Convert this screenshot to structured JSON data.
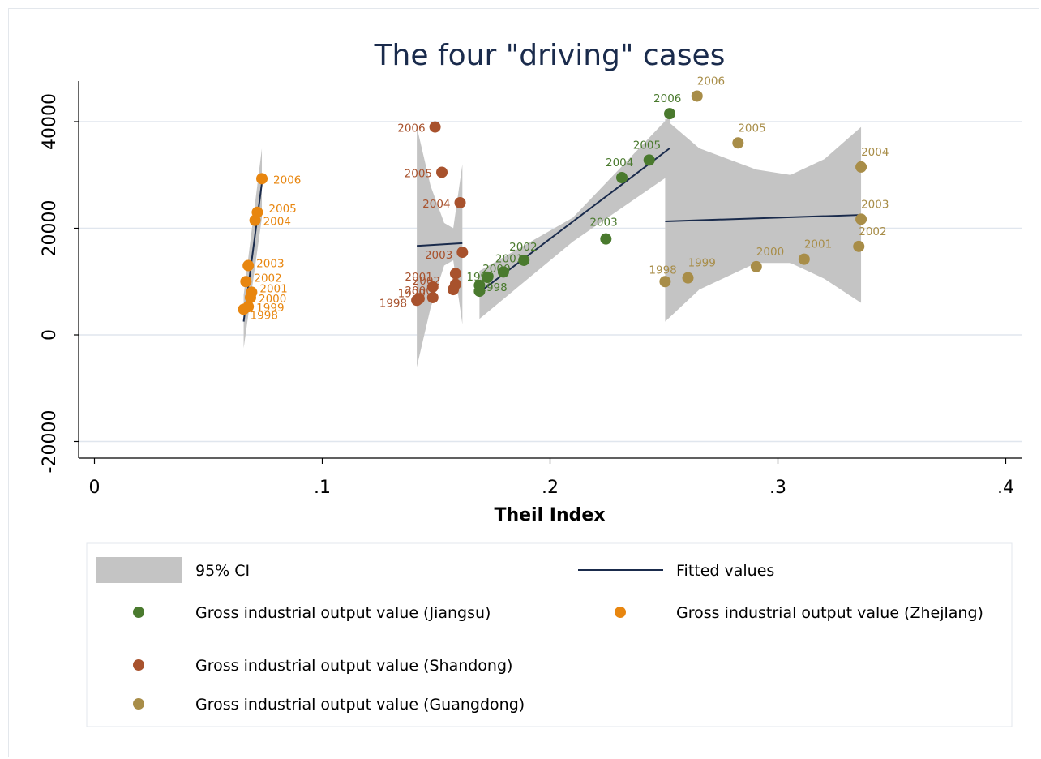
{
  "chart_data": {
    "type": "scatter",
    "title": "The four \"driving\" cases",
    "xlabel": "Theil Index",
    "ylabel": "",
    "xlim": [
      0,
      0.4
    ],
    "ylim": [
      -20000,
      45000
    ],
    "x_ticks": [
      0,
      0.1,
      0.2,
      0.3,
      0.4
    ],
    "x_tick_labels": [
      "0",
      ".1",
      ".2",
      ".3",
      ".4"
    ],
    "y_ticks": [
      -20000,
      0,
      20000,
      40000
    ],
    "y_tick_labels": [
      "-20000",
      "0",
      "20000",
      "40000"
    ],
    "grid": "horizontal",
    "legend": {
      "placement": "bottom",
      "entries": [
        {
          "key": "ci",
          "label": "95% CI",
          "color": "#c4c4c4"
        },
        {
          "key": "fit",
          "label": "Fitted values",
          "color": "#1a2b4c"
        },
        {
          "key": "jiangsu",
          "label": "Gross industrial output value (Jiangsu)",
          "color": "#4a7a2e"
        },
        {
          "key": "zhejiang",
          "label": "Gross industrial output value (Zhejlang)",
          "color": "#e8860f"
        },
        {
          "key": "shandong",
          "label": "Gross industrial output value (Shandong)",
          "color": "#a8522d"
        },
        {
          "key": "guangdong",
          "label": "Gross industrial output value (Guangdong)",
          "color": "#a88d48"
        }
      ]
    },
    "series": [
      {
        "key": "zhejiang",
        "color": "#e8860f",
        "points": [
          {
            "x": 0.0655,
            "y": 4800,
            "label": "1998",
            "dx": 8,
            "dy": 12
          },
          {
            "x": 0.0675,
            "y": 5300,
            "label": "1999",
            "dx": 10,
            "dy": 6
          },
          {
            "x": 0.0685,
            "y": 7000,
            "label": "2000",
            "dx": 10,
            "dy": 6
          },
          {
            "x": 0.069,
            "y": 8000,
            "label": "2001",
            "dx": 10,
            "dy": 0
          },
          {
            "x": 0.0665,
            "y": 10000,
            "label": "2002",
            "dx": 10,
            "dy": 0
          },
          {
            "x": 0.0675,
            "y": 13000,
            "label": "2003",
            "dx": 10,
            "dy": 2
          },
          {
            "x": 0.0705,
            "y": 21500,
            "label": "2004",
            "dx": 10,
            "dy": 6
          },
          {
            "x": 0.0715,
            "y": 23000,
            "label": "2005",
            "dx": 14,
            "dy": 0
          },
          {
            "x": 0.0735,
            "y": 29300,
            "label": "2006",
            "dx": 14,
            "dy": 6
          }
        ],
        "fit": {
          "x": [
            0.0655,
            0.0735
          ],
          "y": [
            2500,
            28500
          ]
        },
        "ci": {
          "x": [
            0.0655,
            0.0735
          ],
          "upper": [
            7500,
            35000
          ],
          "lower": [
            -2500,
            22000
          ]
        }
      },
      {
        "key": "shandong",
        "color": "#a8522d",
        "points": [
          {
            "x": 0.1415,
            "y": 6500,
            "label": "1998",
            "dx": -12,
            "dy": 8,
            "anchor": "end"
          },
          {
            "x": 0.1425,
            "y": 6800,
            "label": "1999",
            "dx": 8,
            "dy": -2,
            "anchor": "end"
          },
          {
            "x": 0.1485,
            "y": 7000,
            "label": "2000",
            "dx": 0,
            "dy": -4,
            "anchor": "end"
          },
          {
            "x": 0.1485,
            "y": 9000,
            "label": "2001",
            "dx": 0,
            "dy": -8,
            "anchor": "end"
          },
          {
            "x": 0.1575,
            "y": 8500,
            "label": "2002",
            "dx": -16,
            "dy": -6,
            "anchor": "end"
          },
          {
            "x": 0.1585,
            "y": 9500,
            "label": "",
            "dx": 0,
            "dy": 0
          },
          {
            "x": 0.1585,
            "y": 11500,
            "label": "",
            "dx": 0,
            "dy": 0
          },
          {
            "x": 0.1615,
            "y": 15500,
            "label": "2003",
            "dx": -12,
            "dy": 8,
            "anchor": "end"
          },
          {
            "x": 0.1605,
            "y": 24800,
            "label": "2004",
            "dx": -12,
            "dy": 6,
            "anchor": "end"
          },
          {
            "x": 0.1525,
            "y": 30500,
            "label": "2005",
            "dx": -12,
            "dy": 6,
            "anchor": "end"
          },
          {
            "x": 0.1495,
            "y": 39000,
            "label": "2006",
            "dx": -12,
            "dy": 6,
            "anchor": "end"
          }
        ],
        "fit": {
          "x": [
            0.1415,
            0.1615
          ],
          "y": [
            16700,
            17200
          ]
        },
        "ci": {
          "x": [
            0.1415,
            0.1475,
            0.1535,
            0.1575,
            0.1615
          ],
          "upper": [
            39000,
            28000,
            21000,
            20000,
            32000
          ],
          "lower": [
            -6000,
            5000,
            13000,
            14000,
            2000
          ]
        }
      },
      {
        "key": "jiangsu",
        "color": "#4a7a2e",
        "points": [
          {
            "x": 0.169,
            "y": 8200,
            "label": "1998",
            "dx": 0,
            "dy": 0
          },
          {
            "x": 0.169,
            "y": 9300,
            "label": "1999",
            "dx": -16,
            "dy": -6
          },
          {
            "x": 0.1725,
            "y": 10800,
            "label": "2000",
            "dx": -6,
            "dy": -6
          },
          {
            "x": 0.1795,
            "y": 11800,
            "label": "2001",
            "dx": -10,
            "dy": -12
          },
          {
            "x": 0.1885,
            "y": 14000,
            "label": "2002",
            "dx": -18,
            "dy": -12
          },
          {
            "x": 0.2245,
            "y": 18000,
            "label": "2003",
            "dx": -20,
            "dy": -16
          },
          {
            "x": 0.2315,
            "y": 29500,
            "label": "2004",
            "dx": -20,
            "dy": -14
          },
          {
            "x": 0.2435,
            "y": 32800,
            "label": "2005",
            "dx": -20,
            "dy": -14
          },
          {
            "x": 0.2525,
            "y": 41500,
            "label": "2006",
            "dx": -20,
            "dy": -14
          }
        ],
        "fit": {
          "x": [
            0.169,
            0.2525
          ],
          "y": [
            8000,
            35000
          ]
        },
        "ci": {
          "x": [
            0.169,
            0.21,
            0.2525
          ],
          "upper": [
            12000,
            22000,
            41000
          ],
          "lower": [
            3000,
            17500,
            30000
          ]
        }
      },
      {
        "key": "guangdong",
        "color": "#a88d48",
        "points": [
          {
            "x": 0.2505,
            "y": 10000,
            "label": "1998",
            "dx": -20,
            "dy": -10
          },
          {
            "x": 0.2605,
            "y": 10700,
            "label": "1999",
            "dx": 0,
            "dy": -14
          },
          {
            "x": 0.2905,
            "y": 12800,
            "label": "2000",
            "dx": 0,
            "dy": -14
          },
          {
            "x": 0.3115,
            "y": 14200,
            "label": "2001",
            "dx": 0,
            "dy": -14
          },
          {
            "x": 0.3355,
            "y": 16600,
            "label": "2002",
            "dx": 0,
            "dy": -14
          },
          {
            "x": 0.3365,
            "y": 21700,
            "label": "2003",
            "dx": 0,
            "dy": -14
          },
          {
            "x": 0.3365,
            "y": 31500,
            "label": "2004",
            "dx": 0,
            "dy": -14
          },
          {
            "x": 0.2825,
            "y": 36000,
            "label": "2005",
            "dx": 0,
            "dy": -14
          },
          {
            "x": 0.2645,
            "y": 44800,
            "label": "2006",
            "dx": 0,
            "dy": -14
          }
        ],
        "fit": {
          "x": [
            0.2505,
            0.3365
          ],
          "y": [
            21300,
            22500
          ]
        },
        "ci": {
          "x": [
            0.2505,
            0.2655,
            0.2905,
            0.3055,
            0.3205,
            0.3365
          ],
          "upper": [
            40500,
            35000,
            31000,
            30000,
            33000,
            39000
          ],
          "lower": [
            2500,
            8500,
            13500,
            13500,
            10500,
            6000
          ]
        }
      }
    ]
  }
}
